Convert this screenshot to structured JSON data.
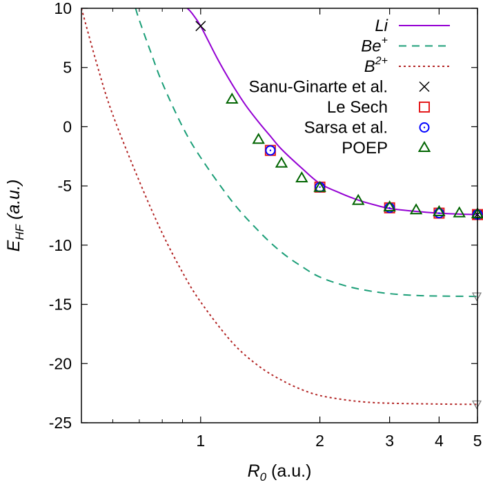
{
  "chart_data": {
    "type": "line",
    "xlabel": {
      "main": "R",
      "sub": "0",
      "unit": " (a.u.)"
    },
    "ylabel": {
      "main": "E",
      "sub": "HF",
      "unit": " (a.u.)"
    },
    "x_scale": "log",
    "xlim": [
      0.5,
      5
    ],
    "ylim": [
      -25,
      10
    ],
    "x_ticks": [
      1,
      2,
      3,
      4,
      5
    ],
    "y_ticks": [
      10,
      5,
      0,
      -5,
      -10,
      -15,
      -20,
      -25
    ],
    "grid": false,
    "legend_position": "top-right",
    "series": [
      {
        "name": "Li",
        "label_base": "Li",
        "label_sup": "",
        "style": "solid",
        "color": "#9400d3",
        "points": [
          [
            0.925,
            10
          ],
          [
            0.95,
            9.6
          ],
          [
            1.0,
            8.5
          ],
          [
            1.1,
            5.8
          ],
          [
            1.2,
            3.6
          ],
          [
            1.3,
            1.8
          ],
          [
            1.4,
            0.4
          ],
          [
            1.5,
            -0.8
          ],
          [
            1.6,
            -1.9
          ],
          [
            1.8,
            -3.5
          ],
          [
            2.0,
            -4.8
          ],
          [
            2.25,
            -5.6
          ],
          [
            2.5,
            -6.2
          ],
          [
            2.75,
            -6.6
          ],
          [
            3.0,
            -6.9
          ],
          [
            3.5,
            -7.15
          ],
          [
            4.0,
            -7.3
          ],
          [
            4.5,
            -7.38
          ],
          [
            5.0,
            -7.42
          ]
        ]
      },
      {
        "name": "Be+",
        "label_base": "Be",
        "label_sup": "+",
        "style": "dashed",
        "color": "#1a9e77",
        "points": [
          [
            0.685,
            10
          ],
          [
            0.7,
            9.0
          ],
          [
            0.75,
            6.2
          ],
          [
            0.8,
            3.7
          ],
          [
            0.9,
            0.0
          ],
          [
            1.0,
            -2.6
          ],
          [
            1.2,
            -6.3
          ],
          [
            1.4,
            -8.8
          ],
          [
            1.6,
            -10.6
          ],
          [
            1.8,
            -11.8
          ],
          [
            2.0,
            -12.7
          ],
          [
            2.3,
            -13.4
          ],
          [
            2.6,
            -13.8
          ],
          [
            3.0,
            -14.1
          ],
          [
            3.5,
            -14.25
          ],
          [
            4.0,
            -14.3
          ],
          [
            5.0,
            -14.33
          ]
        ]
      },
      {
        "name": "B2+",
        "label_base": "B",
        "label_sup": "2+",
        "style": "dotted",
        "color": "#b22222",
        "points": [
          [
            0.5,
            10
          ],
          [
            0.55,
            5.0
          ],
          [
            0.6,
            1.0
          ],
          [
            0.7,
            -4.6
          ],
          [
            0.8,
            -9.0
          ],
          [
            0.9,
            -12.3
          ],
          [
            1.0,
            -14.8
          ],
          [
            1.2,
            -18.2
          ],
          [
            1.4,
            -20.2
          ],
          [
            1.6,
            -21.4
          ],
          [
            1.8,
            -22.2
          ],
          [
            2.0,
            -22.7
          ],
          [
            2.3,
            -23.05
          ],
          [
            2.6,
            -23.25
          ],
          [
            3.0,
            -23.35
          ],
          [
            4.0,
            -23.42
          ],
          [
            5.0,
            -23.45
          ]
        ]
      },
      {
        "name": "Sanu-Ginarte et al.",
        "label_base": "Sanu-Ginarte et al.",
        "label_sup": "",
        "style": "marker",
        "marker": "cross",
        "color": "#000000",
        "points": [
          [
            1.0,
            8.5
          ],
          [
            5.0,
            -7.42
          ]
        ]
      },
      {
        "name": "Le Sech",
        "label_base": "Le Sech",
        "label_sup": "",
        "style": "marker",
        "marker": "square",
        "color": "#e41a1c",
        "points": [
          [
            1.5,
            -2.0
          ],
          [
            2.0,
            -5.1
          ],
          [
            3.0,
            -6.85
          ],
          [
            4.0,
            -7.3
          ],
          [
            5.0,
            -7.42
          ]
        ]
      },
      {
        "name": "Sarsa et al.",
        "label_base": "Sarsa et al.",
        "label_sup": "",
        "style": "marker",
        "marker": "circle",
        "color": "#0000ff",
        "points": [
          [
            1.5,
            -2.0
          ],
          [
            2.0,
            -5.1
          ],
          [
            3.0,
            -6.85
          ],
          [
            4.0,
            -7.3
          ],
          [
            5.0,
            -7.42
          ]
        ]
      },
      {
        "name": "POEP",
        "label_base": "POEP",
        "label_sup": "",
        "style": "marker",
        "marker": "triangle",
        "color": "#006400",
        "points": [
          [
            1.2,
            2.3
          ],
          [
            1.4,
            -1.1
          ],
          [
            1.6,
            -3.1
          ],
          [
            1.8,
            -4.35
          ],
          [
            2.0,
            -5.15
          ],
          [
            2.5,
            -6.25
          ],
          [
            3.0,
            -6.8
          ],
          [
            3.5,
            -7.05
          ],
          [
            4.0,
            -7.2
          ],
          [
            4.5,
            -7.3
          ],
          [
            5.0,
            -7.38
          ]
        ]
      }
    ],
    "extra_markers": [
      {
        "marker": "triangle-down",
        "color": "#777777",
        "points": [
          [
            5.0,
            -14.33
          ],
          [
            5.0,
            -23.45
          ]
        ]
      }
    ]
  }
}
